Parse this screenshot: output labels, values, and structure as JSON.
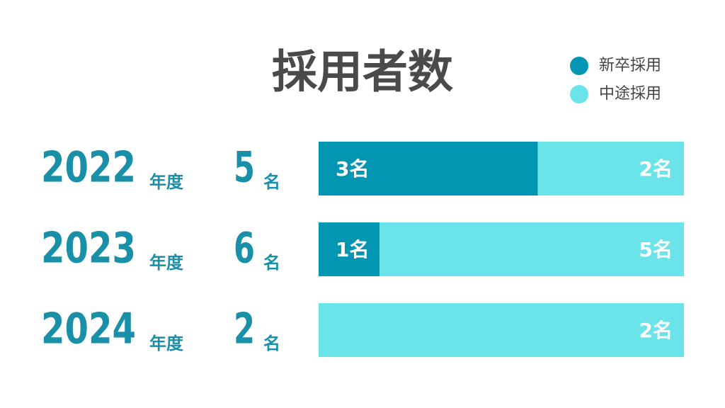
{
  "chart_data": {
    "type": "bar",
    "stacked": true,
    "normalized": true,
    "title": "採用者数",
    "categories": [
      "2022",
      "2023",
      "2024"
    ],
    "category_unit": "年度",
    "totals": [
      5,
      6,
      2
    ],
    "total_unit": "名",
    "legend_position": "top-right",
    "series": [
      {
        "name": "新卒採用",
        "color": "#0396b3",
        "values": [
          3,
          1,
          0
        ],
        "value_labels": [
          "3名",
          "1名",
          null
        ]
      },
      {
        "name": "中途採用",
        "color": "#6ae4e9",
        "values": [
          2,
          5,
          2
        ],
        "value_labels": [
          "2名",
          "5名",
          "2名"
        ]
      }
    ]
  }
}
